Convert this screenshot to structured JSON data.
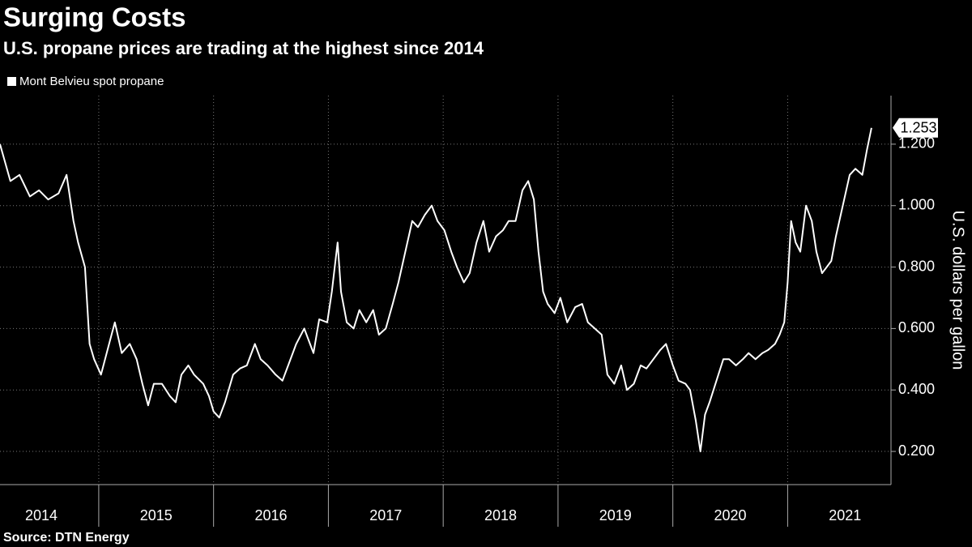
{
  "chart_data": {
    "type": "line",
    "title": "Surging Costs",
    "subtitle": "U.S. propane prices are trading at the highest since 2014",
    "source": "Source: DTN Energy",
    "y_label": "U.S. dollars per gallon",
    "xlim": [
      2014.14,
      2021.9
    ],
    "xticks": [
      2014,
      2015,
      2016,
      2017,
      2018,
      2019,
      2020,
      2021
    ],
    "ylim": [
      0.092,
      1.358
    ],
    "yticks": [
      {
        "value": 0.2,
        "label": "0.200"
      },
      {
        "value": 0.4,
        "label": "0.400"
      },
      {
        "value": 0.6,
        "label": "0.600"
      },
      {
        "value": 0.8,
        "label": "0.800"
      },
      {
        "value": 1.0,
        "label": "1.000"
      },
      {
        "value": 1.2,
        "label": "1.200"
      }
    ],
    "grid": true,
    "x": [
      2014.14,
      2014.23,
      2014.31,
      2014.4,
      2014.48,
      2014.56,
      2014.65,
      2014.72,
      2014.78,
      2014.82,
      2014.88,
      2014.92,
      2014.96,
      2015.02,
      2015.09,
      2015.14,
      2015.2,
      2015.27,
      2015.33,
      2015.38,
      2015.43,
      2015.48,
      2015.55,
      2015.62,
      2015.67,
      2015.72,
      2015.78,
      2015.83,
      2015.91,
      2015.96,
      2016.0,
      2016.05,
      2016.1,
      2016.17,
      2016.23,
      2016.29,
      2016.36,
      2016.41,
      2016.47,
      2016.54,
      2016.6,
      2016.65,
      2016.72,
      2016.79,
      2016.87,
      2016.92,
      2016.99,
      2017.03,
      2017.08,
      2017.11,
      2017.16,
      2017.22,
      2017.27,
      2017.33,
      2017.39,
      2017.44,
      2017.5,
      2017.56,
      2017.61,
      2017.67,
      2017.73,
      2017.78,
      2017.84,
      2017.9,
      2017.95,
      2018.01,
      2018.07,
      2018.12,
      2018.18,
      2018.23,
      2018.29,
      2018.35,
      2018.4,
      2018.46,
      2018.52,
      2018.57,
      2018.63,
      2018.69,
      2018.74,
      2018.79,
      2018.83,
      2018.87,
      2018.91,
      2018.97,
      2019.02,
      2019.08,
      2019.15,
      2019.21,
      2019.26,
      2019.32,
      2019.38,
      2019.43,
      2019.49,
      2019.55,
      2019.6,
      2019.66,
      2019.72,
      2019.77,
      2019.83,
      2019.89,
      2019.94,
      2020.0,
      2020.05,
      2020.11,
      2020.15,
      2020.2,
      2020.24,
      2020.28,
      2020.32,
      2020.38,
      2020.44,
      2020.49,
      2020.55,
      2020.61,
      2020.66,
      2020.72,
      2020.78,
      2020.83,
      2020.89,
      2020.93,
      2020.97,
      2021.0,
      2021.03,
      2021.07,
      2021.11,
      2021.16,
      2021.21,
      2021.25,
      2021.3,
      2021.34,
      2021.38,
      2021.42,
      2021.48,
      2021.54,
      2021.59,
      2021.65,
      2021.69,
      2021.73
    ],
    "series": [
      {
        "name": "Mont Belvieu spot propane",
        "color": "#ffffff",
        "values": [
          1.2,
          1.08,
          1.1,
          1.03,
          1.05,
          1.02,
          1.04,
          1.1,
          0.95,
          0.88,
          0.8,
          0.55,
          0.5,
          0.45,
          0.55,
          0.62,
          0.52,
          0.55,
          0.5,
          0.42,
          0.35,
          0.42,
          0.42,
          0.38,
          0.36,
          0.45,
          0.48,
          0.45,
          0.42,
          0.38,
          0.33,
          0.31,
          0.36,
          0.45,
          0.47,
          0.48,
          0.55,
          0.5,
          0.48,
          0.45,
          0.43,
          0.48,
          0.55,
          0.6,
          0.52,
          0.63,
          0.62,
          0.72,
          0.88,
          0.72,
          0.62,
          0.6,
          0.66,
          0.62,
          0.66,
          0.58,
          0.6,
          0.68,
          0.75,
          0.85,
          0.95,
          0.93,
          0.97,
          1.0,
          0.95,
          0.92,
          0.85,
          0.8,
          0.75,
          0.78,
          0.88,
          0.95,
          0.85,
          0.9,
          0.92,
          0.95,
          0.95,
          1.05,
          1.08,
          1.02,
          0.85,
          0.72,
          0.68,
          0.65,
          0.7,
          0.62,
          0.67,
          0.68,
          0.62,
          0.6,
          0.58,
          0.45,
          0.42,
          0.48,
          0.4,
          0.42,
          0.48,
          0.47,
          0.5,
          0.53,
          0.55,
          0.48,
          0.43,
          0.42,
          0.4,
          0.3,
          0.2,
          0.32,
          0.36,
          0.43,
          0.5,
          0.5,
          0.48,
          0.5,
          0.52,
          0.5,
          0.52,
          0.53,
          0.55,
          0.58,
          0.62,
          0.75,
          0.95,
          0.88,
          0.85,
          1.0,
          0.95,
          0.85,
          0.78,
          0.8,
          0.82,
          0.9,
          1.0,
          1.1,
          1.12,
          1.1,
          1.18,
          1.253
        ]
      }
    ]
  }
}
